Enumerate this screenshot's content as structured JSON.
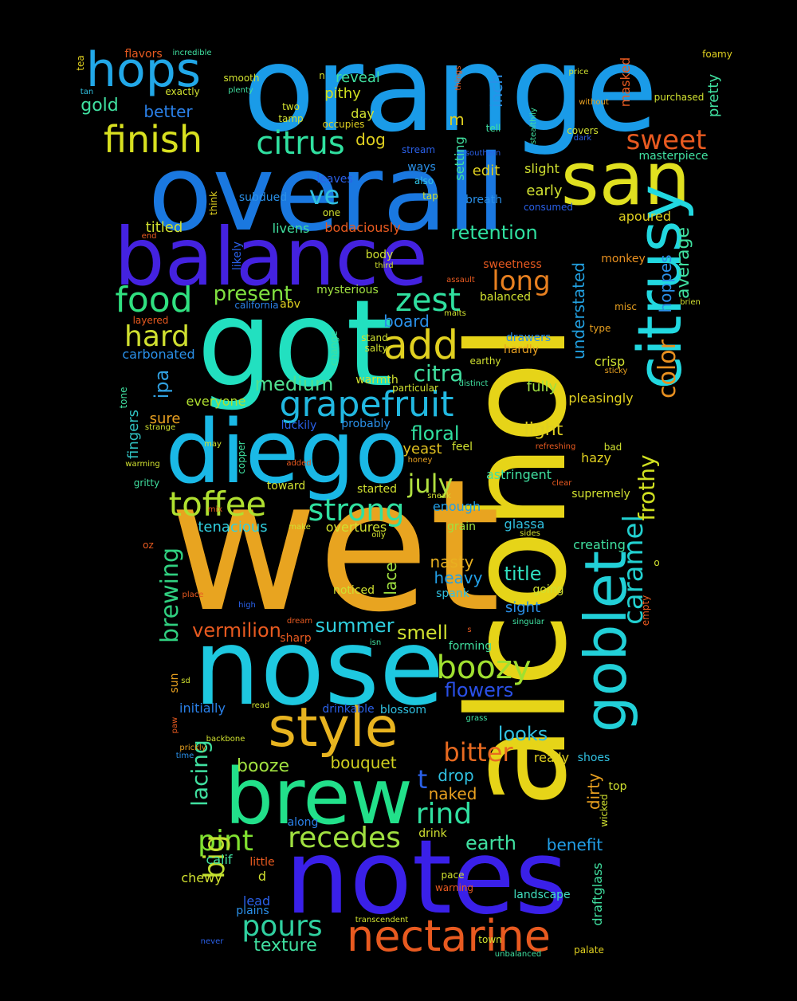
{
  "cloud": {
    "words": [
      {
        "text": "orange",
        "color": "#1a9be8"
      },
      {
        "text": "overall",
        "color": "#1a78e0"
      },
      {
        "text": "alcohol",
        "color": "#e6d418"
      },
      {
        "text": "wet",
        "color": "#e8a420"
      },
      {
        "text": "nose",
        "color": "#1ec8e0"
      },
      {
        "text": "got",
        "color": "#22e0c0"
      },
      {
        "text": "notes",
        "color": "#3a20e8"
      },
      {
        "text": "balance",
        "color": "#4422e0"
      },
      {
        "text": "diego",
        "color": "#1ab8e6"
      },
      {
        "text": "san",
        "color": "#e0e020"
      },
      {
        "text": "brew",
        "color": "#22e08a"
      },
      {
        "text": "citrusy",
        "color": "#22d8e0"
      },
      {
        "text": "goblet",
        "color": "#22d0d8"
      },
      {
        "text": "style",
        "color": "#e8b420"
      },
      {
        "text": "hops",
        "color": "#22a8e8"
      },
      {
        "text": "finish",
        "color": "#d8e020"
      },
      {
        "text": "citrus",
        "color": "#30e0a0"
      },
      {
        "text": "nectarine",
        "color": "#e85a20"
      },
      {
        "text": "grapefruit",
        "color": "#22b8e0"
      },
      {
        "text": "food",
        "color": "#30e080"
      },
      {
        "text": "toffee",
        "color": "#b0e030"
      },
      {
        "text": "strong",
        "color": "#30e0a0"
      },
      {
        "text": "boozy",
        "color": "#a0e030"
      },
      {
        "text": "add",
        "color": "#e0d020"
      },
      {
        "text": "recedes",
        "color": "#a0e040"
      },
      {
        "text": "pours",
        "color": "#30d0a0"
      },
      {
        "text": "zest",
        "color": "#30e0a0"
      },
      {
        "text": "hard",
        "color": "#d0e030"
      },
      {
        "text": "long",
        "color": "#e88020"
      },
      {
        "text": "caramel",
        "color": "#22d0d0"
      },
      {
        "text": "color",
        "color": "#e89020"
      },
      {
        "text": "sweet",
        "color": "#e85a20"
      },
      {
        "text": "ve",
        "color": "#30c0e0"
      },
      {
        "text": "pint",
        "color": "#80e030"
      },
      {
        "text": "big",
        "color": "#c0e030"
      },
      {
        "text": "bitter",
        "color": "#e86a20"
      },
      {
        "text": "rind",
        "color": "#30e0a0"
      },
      {
        "text": "frothy",
        "color": "#d0e020"
      },
      {
        "text": "lacing",
        "color": "#40e0a0"
      },
      {
        "text": "brewing",
        "color": "#30d080"
      },
      {
        "text": "citra",
        "color": "#40e0a0"
      },
      {
        "text": "july",
        "color": "#b0e040"
      },
      {
        "text": "retention",
        "color": "#30e0a0"
      },
      {
        "text": "present",
        "color": "#80e040"
      },
      {
        "text": "floral",
        "color": "#30e0a0"
      },
      {
        "text": "medium",
        "color": "#50e090"
      },
      {
        "text": "average",
        "color": "#40e0a0"
      },
      {
        "text": "hoppes",
        "color": "#2a90e8"
      },
      {
        "text": "understated",
        "color": "#22a0e0"
      },
      {
        "text": "vermilion",
        "color": "#e85a20"
      },
      {
        "text": "summer",
        "color": "#30d0e0"
      },
      {
        "text": "smell",
        "color": "#d0e030"
      },
      {
        "text": "flowers",
        "color": "#2a50e8"
      },
      {
        "text": "looks",
        "color": "#30c0e0"
      },
      {
        "text": "title",
        "color": "#30e0c0"
      },
      {
        "text": "heavy",
        "color": "#22a0e8"
      },
      {
        "text": "nasty",
        "color": "#e8b020"
      },
      {
        "text": "lace",
        "color": "#a0e040"
      },
      {
        "text": "booze",
        "color": "#a0e040"
      },
      {
        "text": "bouquet",
        "color": "#d0d020"
      },
      {
        "text": "t",
        "color": "#2a60e8"
      },
      {
        "text": "drop",
        "color": "#30c0e0"
      },
      {
        "text": "naked",
        "color": "#e8a020"
      },
      {
        "text": "earth",
        "color": "#40e0a0"
      },
      {
        "text": "benefit",
        "color": "#22a0e8"
      },
      {
        "text": "texture",
        "color": "#40e0a0"
      },
      {
        "text": "dirty",
        "color": "#e8a020"
      },
      {
        "text": "draftglass",
        "color": "#40e0a0"
      },
      {
        "text": "light",
        "color": "#e0d020"
      },
      {
        "text": "crisp",
        "color": "#d0e030"
      },
      {
        "text": "fully",
        "color": "#a0e040"
      },
      {
        "text": "board",
        "color": "#2a90e8"
      },
      {
        "text": "ipa",
        "color": "#30a0e0"
      },
      {
        "text": "fingers",
        "color": "#30c0c0"
      },
      {
        "text": "everyone",
        "color": "#b0e030"
      },
      {
        "text": "sure",
        "color": "#e8a020"
      },
      {
        "text": "tenacious",
        "color": "#30d0e0"
      },
      {
        "text": "overtures",
        "color": "#d0e030"
      },
      {
        "text": "yeast",
        "color": "#e0c020"
      },
      {
        "text": "astringent",
        "color": "#40e0a0"
      },
      {
        "text": "enough",
        "color": "#22a0e8"
      },
      {
        "text": "glassa",
        "color": "#30c0e0"
      },
      {
        "text": "sight",
        "color": "#2a90e8"
      },
      {
        "text": "gold",
        "color": "#40e0a0"
      },
      {
        "text": "better",
        "color": "#2a80e8"
      },
      {
        "text": "dog",
        "color": "#e0d020"
      },
      {
        "text": "m",
        "color": "#e0d020"
      },
      {
        "text": "inch",
        "color": "#2a90e8"
      },
      {
        "text": "setting",
        "color": "#40e0a0"
      },
      {
        "text": "edit",
        "color": "#e0d020"
      },
      {
        "text": "slight",
        "color": "#d0e030"
      },
      {
        "text": "early",
        "color": "#d0e030"
      },
      {
        "text": "apoured",
        "color": "#e0d020"
      },
      {
        "text": "pretty",
        "color": "#40e0a0"
      },
      {
        "text": "masked",
        "color": "#e85a20"
      },
      {
        "text": "reveal",
        "color": "#40e0a0"
      },
      {
        "text": "pithy",
        "color": "#d0e020"
      },
      {
        "text": "day",
        "color": "#d0e030"
      },
      {
        "text": "livens",
        "color": "#40e0a0"
      },
      {
        "text": "titled",
        "color": "#d0e030"
      },
      {
        "text": "bodaciously",
        "color": "#e85a20"
      },
      {
        "text": "carbonated",
        "color": "#2a90e8"
      },
      {
        "text": "pleasingly",
        "color": "#e0d020"
      },
      {
        "text": "hazy",
        "color": "#e0d020"
      },
      {
        "text": "creating",
        "color": "#40e0a0"
      },
      {
        "text": "supremely",
        "color": "#d0e030"
      },
      {
        "text": "sharp",
        "color": "#e85a20"
      },
      {
        "text": "calif",
        "color": "#40e0a0"
      },
      {
        "text": "chewy",
        "color": "#d0e030"
      },
      {
        "text": "d",
        "color": "#d0e030"
      },
      {
        "text": "lead",
        "color": "#2a60e8"
      },
      {
        "text": "drink",
        "color": "#d0e030"
      },
      {
        "text": "landscape",
        "color": "#40e0c0"
      },
      {
        "text": "initially",
        "color": "#2a80e8"
      },
      {
        "text": "blossom",
        "color": "#30c0e0"
      },
      {
        "text": "drinkable",
        "color": "#2a60e8"
      },
      {
        "text": "really",
        "color": "#e0d020"
      },
      {
        "text": "shoes",
        "color": "#30c0e0"
      },
      {
        "text": "top",
        "color": "#d0e030"
      },
      {
        "text": "wicked",
        "color": "#d0e030"
      },
      {
        "text": "palate",
        "color": "#e0d020"
      },
      {
        "text": "monkey",
        "color": "#e89020"
      },
      {
        "text": "body",
        "color": "#d0e030"
      },
      {
        "text": "abv",
        "color": "#e0d020"
      },
      {
        "text": "california",
        "color": "#2a80e8"
      },
      {
        "text": "mysterious",
        "color": "#a0e040"
      },
      {
        "text": "balanced",
        "color": "#d0e030"
      },
      {
        "text": "misc",
        "color": "#e8a020"
      },
      {
        "text": "warmth",
        "color": "#d0e030"
      },
      {
        "text": "probably",
        "color": "#2a90e8"
      },
      {
        "text": "luckily",
        "color": "#2a60e8"
      },
      {
        "text": "toward",
        "color": "#d0e030"
      },
      {
        "text": "started",
        "color": "#d0e030"
      },
      {
        "text": "grain",
        "color": "#a0e040"
      },
      {
        "text": "feel",
        "color": "#d0e030"
      },
      {
        "text": "drawers",
        "color": "#2a90e8"
      },
      {
        "text": "hardly",
        "color": "#e8a020"
      },
      {
        "text": "stand",
        "color": "#d0e030"
      },
      {
        "text": "salty",
        "color": "#d0e030"
      },
      {
        "text": "change",
        "color": "#40e0a0"
      },
      {
        "text": "spank",
        "color": "#30c0e0"
      },
      {
        "text": "noticed",
        "color": "#d0e030"
      },
      {
        "text": "going",
        "color": "#d0e030"
      },
      {
        "text": "forming",
        "color": "#40e0a0"
      },
      {
        "text": "sun",
        "color": "#e8a020"
      },
      {
        "text": "along",
        "color": "#2a80e8"
      },
      {
        "text": "little",
        "color": "#e85a20"
      },
      {
        "text": "plains",
        "color": "#2a90e8"
      },
      {
        "text": "flavors",
        "color": "#e85a20"
      },
      {
        "text": "tea",
        "color": "#e0d020"
      },
      {
        "text": "smooth",
        "color": "#d0e030"
      },
      {
        "text": "exactly",
        "color": "#d0e030"
      },
      {
        "text": "two",
        "color": "#d0e030"
      },
      {
        "text": "tamp",
        "color": "#d0e030"
      },
      {
        "text": "occupies",
        "color": "#e0d020"
      },
      {
        "text": "subdued",
        "color": "#2a90e8"
      },
      {
        "text": "leaves",
        "color": "#2a60e8"
      },
      {
        "text": "ways",
        "color": "#2a90e8"
      },
      {
        "text": "also",
        "color": "#30c0e0"
      },
      {
        "text": "tap",
        "color": "#d0e030"
      },
      {
        "text": "breath",
        "color": "#2a90e8"
      },
      {
        "text": "consumed",
        "color": "#2a60e8"
      },
      {
        "text": "one",
        "color": "#d0e030"
      },
      {
        "text": "think",
        "color": "#e0d020"
      },
      {
        "text": "likely",
        "color": "#2a60e8"
      },
      {
        "text": "masterpiece",
        "color": "#40e0a0"
      },
      {
        "text": "purchased",
        "color": "#d0e030"
      },
      {
        "text": "foamy",
        "color": "#e0d020"
      },
      {
        "text": "covers",
        "color": "#d0e030"
      },
      {
        "text": "tell",
        "color": "#40e0a0"
      },
      {
        "text": "stream",
        "color": "#2a60e8"
      },
      {
        "text": "southern",
        "color": "#2a60e8"
      },
      {
        "text": "sweetness",
        "color": "#e85a20"
      },
      {
        "text": "assault",
        "color": "#e85a20"
      },
      {
        "text": "malts",
        "color": "#d0e030"
      },
      {
        "text": "type",
        "color": "#e8a020"
      },
      {
        "text": "sticky",
        "color": "#e8a020"
      },
      {
        "text": "earthy",
        "color": "#d0e030"
      },
      {
        "text": "particular",
        "color": "#d0e030"
      },
      {
        "text": "distinct",
        "color": "#40e0a0"
      },
      {
        "text": "refreshing",
        "color": "#e85a20"
      },
      {
        "text": "bad",
        "color": "#d0e030"
      },
      {
        "text": "strange",
        "color": "#d0e030"
      },
      {
        "text": "copper",
        "color": "#40e0a0"
      },
      {
        "text": "warming",
        "color": "#d0e030"
      },
      {
        "text": "gritty",
        "color": "#40e0a0"
      },
      {
        "text": "added",
        "color": "#e85a20"
      },
      {
        "text": "honey",
        "color": "#e8a020"
      },
      {
        "text": "sneak",
        "color": "#d0e030"
      },
      {
        "text": "clear",
        "color": "#e85a20"
      },
      {
        "text": "mix",
        "color": "#e85a20"
      },
      {
        "text": "make",
        "color": "#d0e030"
      },
      {
        "text": "oily",
        "color": "#d0e030"
      },
      {
        "text": "sides",
        "color": "#d0e030"
      },
      {
        "text": "o",
        "color": "#d0e030"
      },
      {
        "text": "oz",
        "color": "#e85a20"
      },
      {
        "text": "place",
        "color": "#e85a20"
      },
      {
        "text": "high",
        "color": "#2a60e8"
      },
      {
        "text": "dream",
        "color": "#e85a20"
      },
      {
        "text": "isn",
        "color": "#40e0a0"
      },
      {
        "text": "singular",
        "color": "#40e0a0"
      },
      {
        "text": "empty",
        "color": "#e85a20"
      },
      {
        "text": "s",
        "color": "#e85a20"
      },
      {
        "text": "sd",
        "color": "#d0e030"
      },
      {
        "text": "read",
        "color": "#d0e030"
      },
      {
        "text": "paw",
        "color": "#e85a20"
      },
      {
        "text": "backbone",
        "color": "#d0e030"
      },
      {
        "text": "prickly",
        "color": "#e8a020"
      },
      {
        "text": "time",
        "color": "#2a90e8"
      },
      {
        "text": "grass",
        "color": "#40e0a0"
      },
      {
        "text": "warning",
        "color": "#e85a20"
      },
      {
        "text": "pace",
        "color": "#d0e030"
      },
      {
        "text": "transcendent",
        "color": "#d0e030"
      },
      {
        "text": "town",
        "color": "#d0e030"
      },
      {
        "text": "unbalanced",
        "color": "#40e0a0"
      },
      {
        "text": "never",
        "color": "#2a60e8"
      },
      {
        "text": "incredible",
        "color": "#40e0a0"
      },
      {
        "text": "plenty",
        "color": "#40e0a0"
      },
      {
        "text": "tan",
        "color": "#30c0e0"
      },
      {
        "text": "n",
        "color": "#d0e030"
      },
      {
        "text": "things",
        "color": "#e85a20"
      },
      {
        "text": "stealthily",
        "color": "#40e0a0"
      },
      {
        "text": "price",
        "color": "#d0e030"
      },
      {
        "text": "without",
        "color": "#e8a020"
      },
      {
        "text": "dark",
        "color": "#2a60e8"
      },
      {
        "text": "brien",
        "color": "#d0e030"
      },
      {
        "text": "third",
        "color": "#d0e030"
      },
      {
        "text": "end",
        "color": "#e85a20"
      },
      {
        "text": "layered",
        "color": "#e85a20"
      },
      {
        "text": "tone",
        "color": "#40e0a0"
      },
      {
        "text": "may",
        "color": "#d0e030"
      }
    ]
  }
}
